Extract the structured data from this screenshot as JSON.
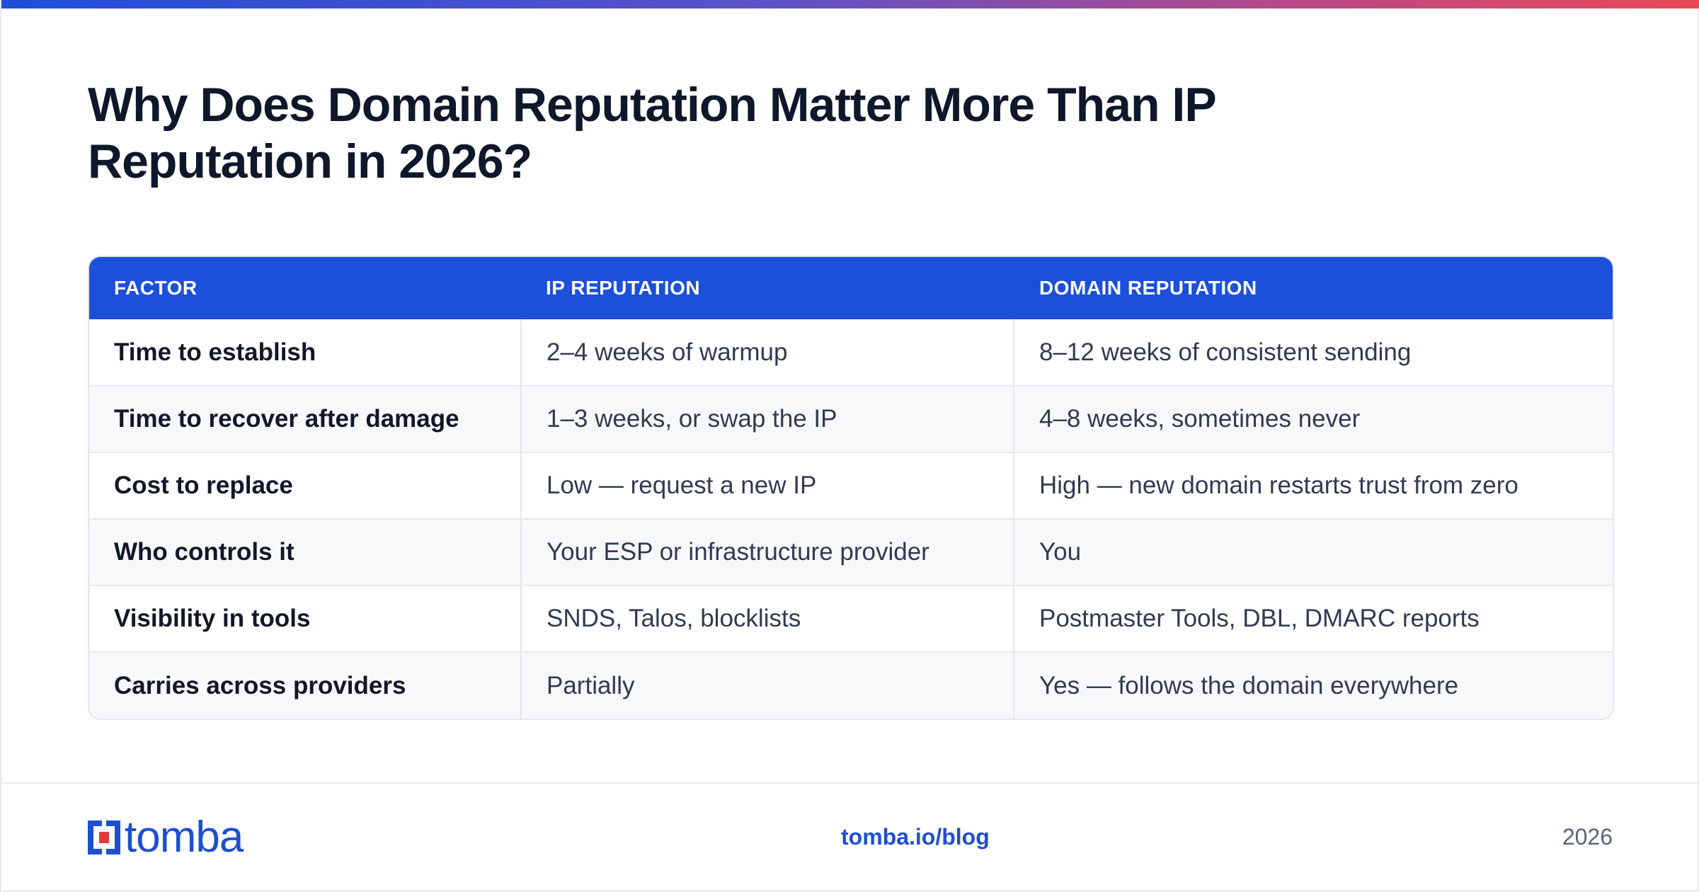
{
  "header": {
    "title": "Why Does Domain Reputation Matter More Than IP Reputation in 2026?"
  },
  "table": {
    "columns": [
      "FACTOR",
      "IP REPUTATION",
      "DOMAIN REPUTATION"
    ],
    "rows": [
      [
        "Time to establish",
        "2–4 weeks of warmup",
        "8–12 weeks of consistent sending"
      ],
      [
        "Time to recover after damage",
        "1–3 weeks, or swap the IP",
        "4–8 weeks, sometimes never"
      ],
      [
        "Cost to replace",
        "Low — request a new IP",
        "High — new domain restarts trust from zero"
      ],
      [
        "Who controls it",
        "Your ESP or infrastructure provider",
        "You"
      ],
      [
        "Visibility in tools",
        "SNDS, Talos, blocklists",
        "Postmaster Tools, DBL, DMARC reports"
      ],
      [
        "Carries across providers",
        "Partially",
        "Yes — follows the domain everywhere"
      ]
    ]
  },
  "footer": {
    "logo_text": "tomba",
    "url": "tomba.io/blog",
    "year": "2026"
  },
  "colors": {
    "accent": "#1c50db",
    "title": "#0f172a",
    "logo_red": "#e23a3a"
  }
}
